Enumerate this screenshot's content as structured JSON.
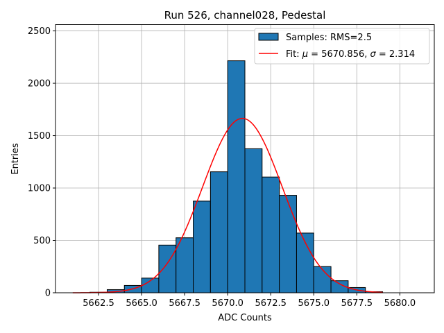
{
  "chart_data": {
    "type": "bar",
    "title": "Run 526, channel028, Pedestal",
    "xlabel": "ADC Counts",
    "ylabel": "Entries",
    "xlim": [
      5660,
      5682
    ],
    "ylim": [
      0,
      2560
    ],
    "xticks": [
      5662.5,
      5665.0,
      5667.5,
      5670.0,
      5672.5,
      5675.0,
      5677.5,
      5680.0
    ],
    "xtick_labels": [
      "5662.5",
      "5665.0",
      "5667.5",
      "5670.0",
      "5672.5",
      "5675.0",
      "5677.5",
      "5680.0"
    ],
    "yticks": [
      0,
      500,
      1000,
      1500,
      2000,
      2500
    ],
    "ytick_labels": [
      "0",
      "500",
      "1000",
      "1500",
      "2000",
      "2500"
    ],
    "grid": true,
    "legend_position": "top-right",
    "bar_color": "#1f77b4",
    "fit_color": "#ff0000",
    "histogram": {
      "name": "Samples: RMS=2.5",
      "bins": [
        {
          "left": 5662,
          "right": 5663,
          "value": 5
        },
        {
          "left": 5663,
          "right": 5664,
          "value": 30
        },
        {
          "left": 5664,
          "right": 5665,
          "value": 70
        },
        {
          "left": 5665,
          "right": 5666,
          "value": 140
        },
        {
          "left": 5666,
          "right": 5667,
          "value": 455
        },
        {
          "left": 5667,
          "right": 5668,
          "value": 525
        },
        {
          "left": 5668,
          "right": 5669,
          "value": 875
        },
        {
          "left": 5669,
          "right": 5670,
          "value": 1155
        },
        {
          "left": 5670,
          "right": 5671,
          "value": 2215
        },
        {
          "left": 5671,
          "right": 5672,
          "value": 1375
        },
        {
          "left": 5672,
          "right": 5673,
          "value": 1105
        },
        {
          "left": 5673,
          "right": 5674,
          "value": 930
        },
        {
          "left": 5674,
          "right": 5675,
          "value": 570
        },
        {
          "left": 5675,
          "right": 5676,
          "value": 250
        },
        {
          "left": 5676,
          "right": 5677,
          "value": 115
        },
        {
          "left": 5677,
          "right": 5678,
          "value": 50
        },
        {
          "left": 5678,
          "right": 5679,
          "value": 10
        }
      ]
    },
    "fit": {
      "name": "Fit: μ = 5670.856, σ = 2.314",
      "legend_prefix": "Fit: ",
      "mu_symbol": "μ",
      "mu_text": " = 5670.856, ",
      "sigma_symbol": "σ",
      "sigma_text": " = 2.314",
      "mu": 5670.856,
      "sigma": 2.314,
      "amplitude": 1665,
      "x_range": [
        5661,
        5679
      ]
    }
  }
}
